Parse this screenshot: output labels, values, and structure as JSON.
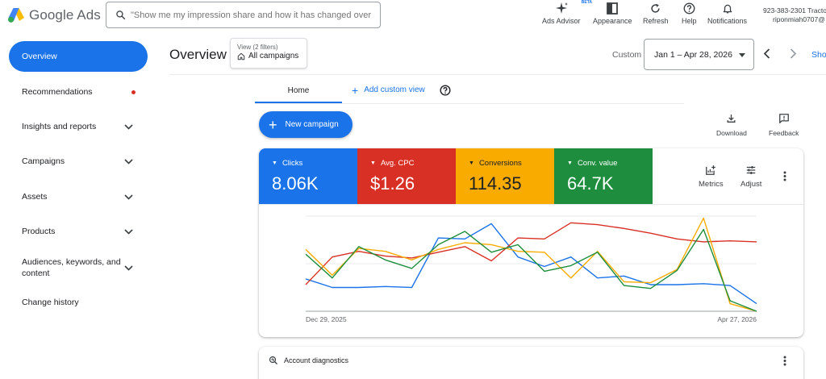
{
  "app": {
    "name": "Google Ads"
  },
  "search": {
    "placeholder": "\"Show me my impression share and how it has changed over time.\""
  },
  "toolbar": {
    "ads_advisor": "Ads Advisor",
    "beta": "BETA",
    "appearance": "Appearance",
    "refresh": "Refresh",
    "help": "Help",
    "notifications": "Notifications"
  },
  "account": {
    "line1": "923-383-2301 Tracto",
    "line2": "riponmiah0707@"
  },
  "sidebar": {
    "items": [
      {
        "label": "Overview"
      },
      {
        "label": "Recommendations"
      },
      {
        "label": "Insights and reports"
      },
      {
        "label": "Campaigns"
      },
      {
        "label": "Assets"
      },
      {
        "label": "Products"
      },
      {
        "label": "Audiences, keywords, and content"
      },
      {
        "label": "Change history"
      }
    ]
  },
  "header": {
    "title": "Overview",
    "view_filters": "View (2 filters)",
    "view_scope": "All campaigns",
    "custom_label": "Custom",
    "date_range": "Jan 1 – Apr 28, 2026",
    "show_label": "Sho"
  },
  "tabs": {
    "home": "Home",
    "add_custom": "Add custom view"
  },
  "actions": {
    "new_campaign": "New campaign",
    "download": "Download",
    "feedback": "Feedback"
  },
  "metrics": [
    {
      "label": "Clicks",
      "value": "8.06K",
      "color": "#1a73e8"
    },
    {
      "label": "Avg. CPC",
      "value": "$1.26",
      "color": "#d93025"
    },
    {
      "label": "Conversions",
      "value": "114.35",
      "color": "#f9ab00"
    },
    {
      "label": "Conv. value",
      "value": "64.7K",
      "color": "#1e8e3e"
    }
  ],
  "card_tools": {
    "metrics": "Metrics",
    "adjust": "Adjust"
  },
  "chart_data": {
    "type": "line",
    "x_start_label": "Dec 29, 2025",
    "x_end_label": "Apr 27, 2026",
    "grid": true,
    "ylim": [
      0,
      1
    ],
    "series": [
      {
        "name": "Clicks",
        "color": "#1a73e8",
        "values": [
          0.34,
          0.25,
          0.25,
          0.26,
          0.25,
          0.77,
          0.76,
          0.92,
          0.57,
          0.47,
          0.57,
          0.35,
          0.37,
          0.28,
          0.28,
          0.29,
          0.27,
          0.08
        ]
      },
      {
        "name": "Avg. CPC",
        "color": "#d93025",
        "values": [
          0.28,
          0.57,
          0.63,
          0.58,
          0.56,
          0.62,
          0.68,
          0.53,
          0.77,
          0.76,
          0.93,
          0.91,
          0.87,
          0.82,
          0.76,
          0.73,
          0.74,
          0.73
        ]
      },
      {
        "name": "Conversions",
        "color": "#f9ab00",
        "values": [
          0.65,
          0.38,
          0.66,
          0.63,
          0.54,
          0.65,
          0.72,
          0.7,
          0.63,
          0.62,
          0.35,
          0.63,
          0.31,
          0.3,
          0.44,
          0.98,
          0.08,
          0.0
        ]
      },
      {
        "name": "Conv. value",
        "color": "#1e8e3e",
        "values": [
          0.6,
          0.35,
          0.68,
          0.54,
          0.45,
          0.7,
          0.84,
          0.62,
          0.7,
          0.42,
          0.48,
          0.62,
          0.27,
          0.24,
          0.43,
          0.86,
          0.11,
          0.0
        ]
      }
    ]
  },
  "diagnostics": {
    "title": "Account diagnostics"
  }
}
